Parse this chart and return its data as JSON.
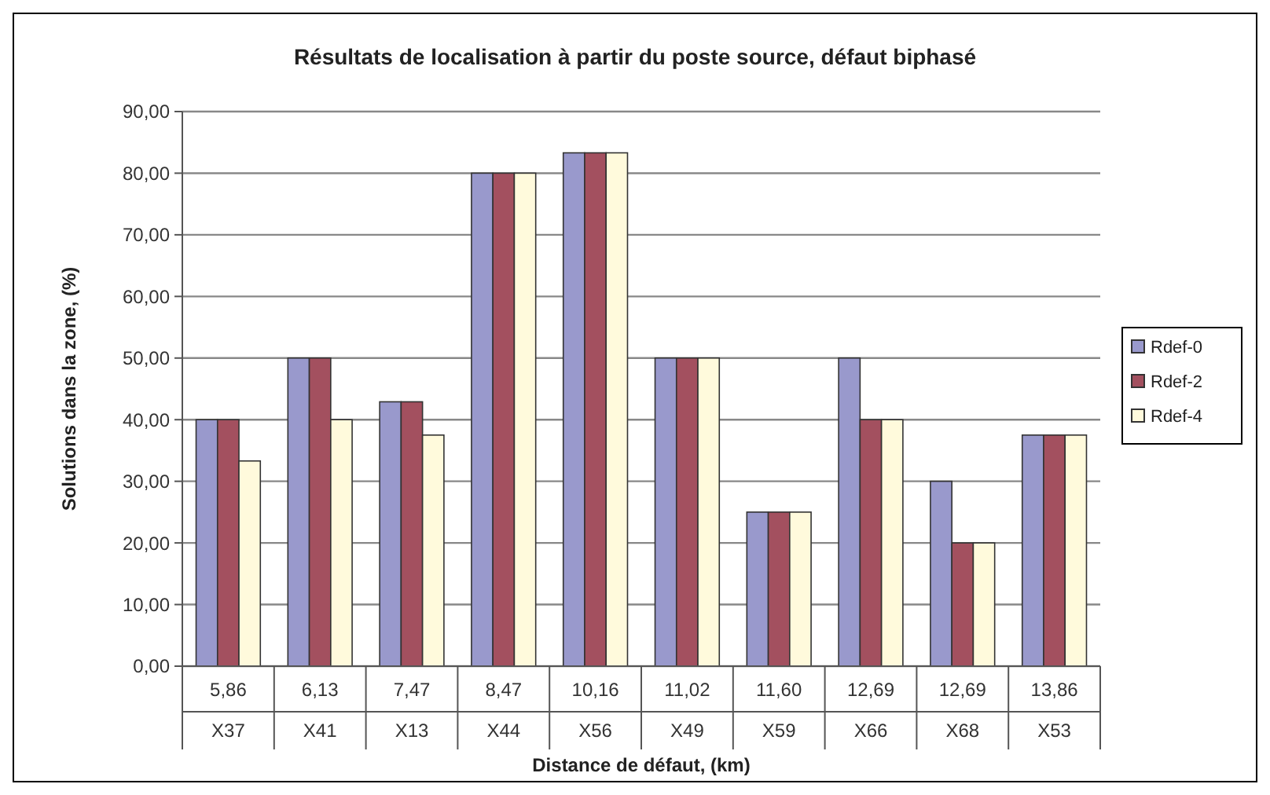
{
  "chart_data": {
    "type": "bar",
    "title": "Résultats de localisation à partir du poste source, défaut biphasé",
    "xlabel": "Distance de défaut, (km)",
    "ylabel": "Solutions dans la zone, (%)",
    "categories": [
      "5,86\nX37",
      "6,13\nX41",
      "7,47\nX13",
      "8,47\nX44",
      "10,16\nX56",
      "11,02\nX49",
      "11,60\nX59",
      "12,69\nX66",
      "12,69\nX68",
      "13,86\nX53"
    ],
    "series": [
      {
        "name": "Rdef-0",
        "color": "#9999cc",
        "values": [
          40,
          50,
          42.9,
          80,
          83.3,
          50,
          25,
          50,
          30,
          37.5
        ]
      },
      {
        "name": "Rdef-2",
        "color": "#a3505f",
        "values": [
          40,
          50,
          42.9,
          80,
          83.3,
          50,
          25,
          40,
          20,
          37.5
        ]
      },
      {
        "name": "Rdef-4",
        "color": "#fffadc",
        "values": [
          33.3,
          40,
          37.5,
          80,
          83.3,
          50,
          25,
          40,
          20,
          37.5
        ]
      }
    ],
    "ylim": [
      0,
      90
    ],
    "yticks": [
      {
        "value": 0,
        "label": "0,00"
      },
      {
        "value": 10,
        "label": "10,00"
      },
      {
        "value": 20,
        "label": "20,00"
      },
      {
        "value": 30,
        "label": "30,00"
      },
      {
        "value": 40,
        "label": "40,00"
      },
      {
        "value": 50,
        "label": "50,00"
      },
      {
        "value": 60,
        "label": "60,00"
      },
      {
        "value": 70,
        "label": "70,00"
      },
      {
        "value": 80,
        "label": "80,00"
      },
      {
        "value": 90,
        "label": "90,00"
      }
    ],
    "grid": "y",
    "legend": "right"
  }
}
